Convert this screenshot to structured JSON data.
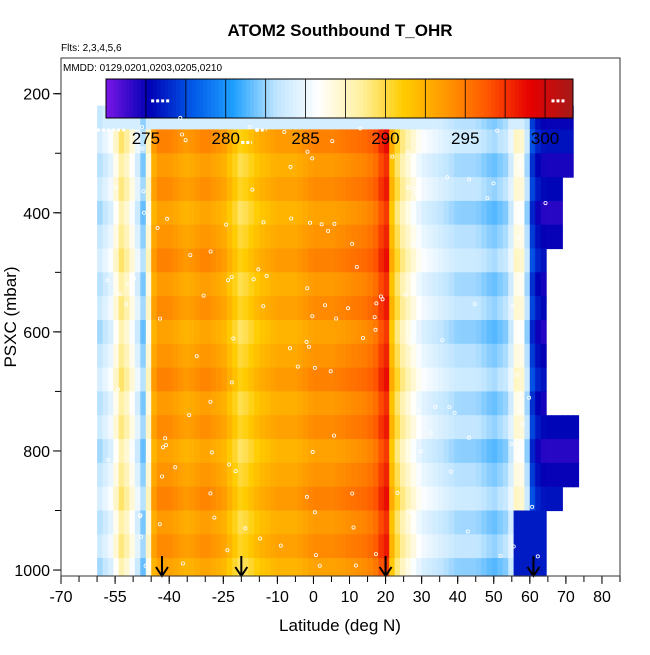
{
  "title": "ATOM2 Southbound T_OHR",
  "subtitle_flights": "Flts: 2,3,4,5,6",
  "subtitle_dates": "MMDD: 0129,0201,0203,0205,0210",
  "chart_data": {
    "type": "heatmap",
    "xlabel": "Latitude (deg N)",
    "ylabel": "PSXC (mbar)",
    "xlim": [
      -70,
      85
    ],
    "ylim": [
      1010,
      140
    ],
    "x_ticks": [
      -70,
      -55,
      -40,
      -25,
      -10,
      0,
      10,
      20,
      30,
      40,
      50,
      60,
      70,
      80
    ],
    "y_ticks": [
      200,
      400,
      600,
      800,
      1000
    ],
    "colorbar": {
      "min": 272.5,
      "max": 301.75,
      "ticks": [
        275,
        280,
        285,
        290,
        295,
        300
      ],
      "colors": [
        "#7b16e6",
        "#0000b4",
        "#0055e6",
        "#1ea0ff",
        "#bfe5ff",
        "#ffffff",
        "#fff0a0",
        "#ffcc00",
        "#ff9900",
        "#ff5500",
        "#e60000",
        "#a51a1a"
      ]
    },
    "arrows_latitude": [
      -42,
      -20,
      20,
      61
    ],
    "temperature_profile": {
      "latitude": [
        -60,
        -56,
        -53,
        -50,
        -47,
        -44,
        -40,
        -35,
        -30,
        -25,
        -20,
        -15,
        -10,
        -5,
        0,
        5,
        10,
        15,
        18,
        20,
        22,
        25,
        30,
        35,
        40,
        45,
        50,
        54,
        57,
        59,
        61,
        64,
        68,
        72
      ],
      "temperature_K": [
        283,
        285,
        289,
        286,
        282,
        294,
        294,
        293,
        294,
        293,
        290,
        292,
        293,
        293,
        294,
        294,
        294.5,
        295,
        296,
        299,
        291,
        288,
        285,
        284,
        283,
        283,
        282,
        283,
        288,
        284,
        276,
        275,
        275,
        275
      ]
    }
  }
}
